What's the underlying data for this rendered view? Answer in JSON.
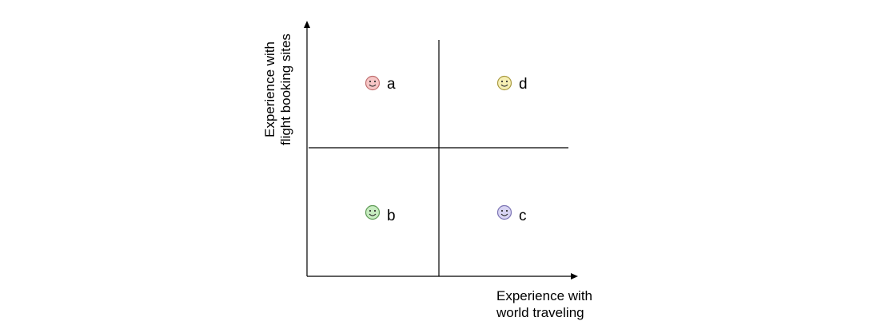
{
  "axes": {
    "y_label_lines": [
      "Experience with",
      "flight booking sites"
    ],
    "x_label_lines": [
      "Experience with",
      "world traveling"
    ]
  },
  "quadrants": [
    {
      "id": "a",
      "label": "a",
      "face_color": "#f6c6c6",
      "face_stroke": "#c07070",
      "position": "top-left"
    },
    {
      "id": "d",
      "label": "d",
      "face_color": "#f6efb4",
      "face_stroke": "#a99a40",
      "position": "top-right"
    },
    {
      "id": "b",
      "label": "b",
      "face_color": "#c7ecc0",
      "face_stroke": "#5e9a55",
      "position": "bottom-left"
    },
    {
      "id": "c",
      "label": "c",
      "face_color": "#d8d4f3",
      "face_stroke": "#7a72b3",
      "position": "bottom-right"
    }
  ]
}
